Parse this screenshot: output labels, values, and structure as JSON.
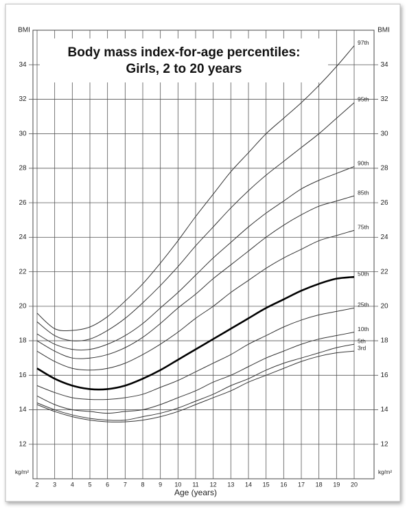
{
  "chart_data": {
    "type": "line",
    "title": "Body mass index-for-age percentiles:",
    "subtitle": "Girls, 2 to 20 years",
    "y_label": "BMI",
    "y_unit_label": "kg/m²",
    "x_label": "Age (years)",
    "x": [
      2,
      3,
      4,
      5,
      6,
      7,
      8,
      9,
      10,
      11,
      12,
      13,
      14,
      15,
      16,
      17,
      18,
      19,
      20
    ],
    "xlim": [
      2,
      20
    ],
    "xticks": [
      2,
      3,
      4,
      5,
      6,
      7,
      8,
      9,
      10,
      11,
      12,
      13,
      14,
      15,
      16,
      17,
      18,
      19,
      20
    ],
    "ylim": [
      10,
      36
    ],
    "yticks": [
      12,
      14,
      16,
      18,
      20,
      22,
      24,
      26,
      28,
      30,
      32,
      34
    ],
    "grid": true,
    "color": "#333333",
    "series": [
      {
        "name": "97th",
        "values": [
          19.6,
          18.7,
          18.6,
          18.8,
          19.4,
          20.3,
          21.3,
          22.5,
          23.8,
          25.2,
          26.5,
          27.8,
          28.9,
          30.0,
          30.9,
          31.8,
          32.8,
          33.9,
          35.1
        ]
      },
      {
        "name": "95th",
        "values": [
          19.1,
          18.3,
          18.0,
          18.1,
          18.6,
          19.3,
          20.2,
          21.2,
          22.3,
          23.5,
          24.6,
          25.7,
          26.7,
          27.6,
          28.4,
          29.2,
          30.0,
          30.9,
          31.8
        ]
      },
      {
        "name": "90th",
        "values": [
          18.4,
          17.8,
          17.5,
          17.5,
          17.8,
          18.3,
          19.0,
          19.9,
          20.8,
          21.8,
          22.8,
          23.7,
          24.6,
          25.4,
          26.1,
          26.8,
          27.3,
          27.7,
          28.1
        ]
      },
      {
        "name": "85th",
        "values": [
          18.0,
          17.4,
          17.0,
          17.0,
          17.2,
          17.6,
          18.2,
          19.0,
          19.9,
          20.7,
          21.6,
          22.4,
          23.2,
          24.0,
          24.7,
          25.3,
          25.8,
          26.1,
          26.4
        ]
      },
      {
        "name": "75th",
        "values": [
          17.4,
          16.8,
          16.4,
          16.3,
          16.4,
          16.7,
          17.2,
          17.8,
          18.5,
          19.3,
          20.0,
          20.8,
          21.5,
          22.2,
          22.8,
          23.3,
          23.8,
          24.1,
          24.4
        ]
      },
      {
        "name": "50th",
        "bold": true,
        "values": [
          16.4,
          15.8,
          15.4,
          15.2,
          15.2,
          15.4,
          15.8,
          16.3,
          16.9,
          17.5,
          18.1,
          18.7,
          19.3,
          19.9,
          20.4,
          20.9,
          21.3,
          21.6,
          21.7
        ]
      },
      {
        "name": "25th",
        "values": [
          15.4,
          15.0,
          14.7,
          14.6,
          14.6,
          14.7,
          14.9,
          15.3,
          15.7,
          16.2,
          16.7,
          17.2,
          17.8,
          18.3,
          18.8,
          19.2,
          19.5,
          19.7,
          19.9
        ]
      },
      {
        "name": "10th",
        "values": [
          14.8,
          14.3,
          14.0,
          13.9,
          13.8,
          13.9,
          14.0,
          14.3,
          14.7,
          15.1,
          15.6,
          16.0,
          16.5,
          17.0,
          17.4,
          17.8,
          18.1,
          18.3,
          18.5
        ]
      },
      {
        "name": "5th",
        "values": [
          14.4,
          14.0,
          13.7,
          13.5,
          13.4,
          13.4,
          13.6,
          13.8,
          14.1,
          14.5,
          14.9,
          15.4,
          15.8,
          16.3,
          16.7,
          17.0,
          17.3,
          17.6,
          17.8
        ]
      },
      {
        "name": "3rd",
        "values": [
          14.3,
          13.9,
          13.6,
          13.4,
          13.3,
          13.3,
          13.4,
          13.6,
          13.9,
          14.3,
          14.7,
          15.1,
          15.6,
          16.0,
          16.4,
          16.8,
          17.1,
          17.3,
          17.4
        ]
      }
    ]
  }
}
